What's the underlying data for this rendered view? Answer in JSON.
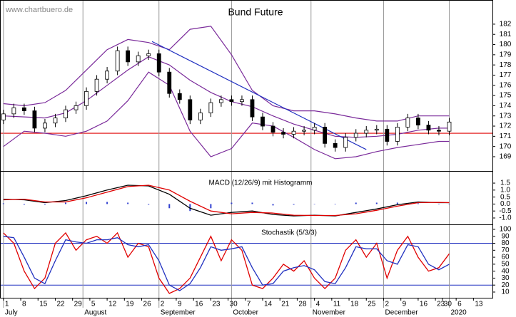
{
  "chart_data": [
    {
      "type": "candlestick",
      "title": "Bund Future",
      "source": "www.chartbuero.de",
      "xlim": [
        -1,
        141.5
      ],
      "ylim": [
        167.6,
        184.3
      ],
      "yticks": [
        169,
        170,
        171,
        172,
        173,
        174,
        175,
        176,
        177,
        178,
        179,
        180,
        181,
        182
      ],
      "x": [
        0,
        3,
        6,
        9,
        12,
        15,
        18,
        21,
        24,
        27,
        30,
        33,
        36,
        39,
        42,
        45,
        48,
        51,
        54,
        57,
        60,
        63,
        66,
        69,
        72,
        75,
        78,
        81,
        84,
        87,
        90,
        93,
        96,
        99,
        102,
        105,
        108,
        111,
        114,
        117,
        120,
        123,
        126,
        129
      ],
      "open": [
        172.6,
        173.2,
        173.8,
        173.5,
        171.8,
        172.3,
        172.8,
        173.6,
        174.0,
        175.4,
        176.6,
        177.4,
        179.4,
        178.3,
        178.9,
        179.1,
        177.3,
        175.2,
        174.6,
        172.6,
        173.3,
        174.3,
        174.6,
        174.4,
        174.6,
        172.9,
        172.0,
        171.4,
        171.2,
        171.5,
        171.6,
        171.9,
        170.3,
        169.9,
        170.9,
        171.3,
        171.6,
        171.7,
        170.5,
        171.9,
        172.8,
        172.1,
        171.6,
        171.5
      ],
      "high": [
        173.6,
        174.2,
        174.2,
        173.9,
        172.7,
        173.2,
        174.0,
        174.4,
        175.8,
        177.0,
        177.8,
        179.8,
        179.8,
        179.3,
        179.5,
        179.5,
        177.7,
        175.6,
        175.0,
        173.7,
        174.7,
        175.0,
        175.0,
        175.0,
        175.0,
        173.3,
        172.4,
        171.8,
        171.9,
        172.0,
        172.3,
        172.3,
        170.7,
        171.3,
        171.7,
        172.0,
        172.1,
        172.1,
        172.3,
        173.2,
        173.2,
        172.5,
        172.0,
        172.8
      ],
      "low": [
        172.2,
        172.8,
        173.1,
        171.4,
        171.4,
        171.9,
        172.4,
        173.2,
        173.6,
        175.0,
        176.2,
        177.0,
        177.9,
        177.9,
        178.5,
        176.9,
        174.8,
        174.2,
        172.2,
        172.2,
        172.9,
        173.9,
        174.0,
        174.0,
        172.5,
        171.6,
        171.0,
        170.8,
        170.8,
        171.1,
        171.2,
        169.9,
        169.5,
        169.5,
        170.5,
        170.9,
        171.2,
        170.1,
        170.1,
        171.5,
        171.7,
        171.2,
        171.1,
        171.1
      ],
      "close": [
        173.2,
        173.8,
        173.5,
        171.8,
        172.3,
        172.8,
        173.6,
        174.0,
        175.4,
        176.6,
        177.4,
        179.4,
        178.3,
        178.9,
        179.1,
        177.3,
        175.2,
        174.6,
        172.6,
        173.3,
        174.3,
        174.6,
        174.4,
        174.6,
        172.9,
        172.0,
        171.4,
        171.2,
        171.5,
        171.6,
        171.9,
        170.3,
        169.9,
        170.9,
        171.3,
        171.6,
        171.7,
        170.5,
        171.9,
        172.8,
        172.1,
        171.6,
        171.5,
        172.4
      ],
      "up_color": "#ffffff",
      "down_color": "#000000",
      "bands": {
        "x": [
          0,
          6,
          12,
          18,
          24,
          30,
          36,
          42,
          48,
          54,
          60,
          66,
          72,
          78,
          84,
          90,
          96,
          102,
          108,
          114,
          120,
          126,
          129
        ],
        "series": [
          {
            "color": "#7a2a9a",
            "values": [
              174.2,
              174.0,
              174.3,
              175.5,
              177.5,
              179.5,
              180.5,
              180.2,
              179.5,
              181.5,
              181.8,
              179.0,
              175.5,
              174.0,
              173.5,
              173.5,
              173.2,
              172.8,
              172.5,
              172.5,
              173.0,
              173.0,
              173.0
            ]
          },
          {
            "color": "#7a2a9a",
            "values": [
              173.0,
              172.9,
              172.8,
              173.3,
              174.5,
              176.0,
              177.5,
              178.8,
              178.0,
              176.5,
              175.3,
              174.4,
              173.9,
              173.0,
              172.2,
              171.6,
              171.0,
              170.9,
              171.0,
              171.2,
              171.6,
              171.8,
              171.8
            ]
          },
          {
            "color": "#7a2a9a",
            "values": [
              170.0,
              171.5,
              171.3,
              171.0,
              171.5,
              172.5,
              174.5,
              177.3,
              176.0,
              171.5,
              169.0,
              169.8,
              172.3,
              172.0,
              170.9,
              169.7,
              168.8,
              169.0,
              169.5,
              169.9,
              170.2,
              170.5,
              170.5
            ]
          }
        ]
      },
      "level": {
        "value": 171.3,
        "color": "#e00000"
      },
      "trendline": {
        "x": [
          43,
          105
        ],
        "y": [
          180.3,
          169.7
        ],
        "color": "#2030c0"
      }
    },
    {
      "type": "macd",
      "title": "MACD (12/26/9) mit Histogramm",
      "xlim": [
        -1,
        141.5
      ],
      "ylim": [
        -1.46,
        2.32
      ],
      "yticks": [
        {
          "value": -1,
          "label": "-1.0"
        },
        -0.5,
        {
          "value": 0,
          "label": "0.0"
        },
        0.5,
        {
          "value": 1,
          "label": "1.0"
        },
        1.5
      ],
      "x": [
        0,
        6,
        12,
        18,
        24,
        30,
        36,
        42,
        48,
        54,
        60,
        66,
        72,
        78,
        84,
        90,
        96,
        102,
        108,
        114,
        120,
        126,
        129
      ],
      "series": [
        {
          "color": "#000000",
          "values": [
            0.35,
            0.3,
            0.1,
            0.25,
            0.6,
            1.0,
            1.35,
            1.3,
            0.7,
            -0.3,
            -0.8,
            -0.6,
            -0.5,
            -0.75,
            -0.85,
            -0.8,
            -0.85,
            -0.6,
            -0.35,
            -0.05,
            0.15,
            0.1,
            0.1
          ]
        },
        {
          "color": "#e00000",
          "values": [
            0.3,
            0.35,
            0.15,
            0.15,
            0.45,
            0.85,
            1.25,
            1.35,
            1.0,
            0.2,
            -0.5,
            -0.7,
            -0.6,
            -0.65,
            -0.8,
            -0.82,
            -0.82,
            -0.7,
            -0.45,
            -0.15,
            0.1,
            0.12,
            0.1
          ]
        }
      ],
      "histogram": {
        "color": "#3040d0",
        "values": [
          0.05,
          -0.05,
          -0.05,
          0.1,
          0.15,
          0.15,
          0.1,
          -0.05,
          -0.3,
          -0.5,
          -0.3,
          0.1,
          0.1,
          -0.1,
          -0.05,
          0.02,
          -0.03,
          0.1,
          0.1,
          0.1,
          0.05,
          -0.02,
          0
        ]
      }
    },
    {
      "type": "line",
      "title": "Stochastik (5/3/3)",
      "xlim": [
        -1,
        141.5
      ],
      "ylim": [
        1.8,
        106.1
      ],
      "yticks": [
        10,
        20,
        30,
        40,
        50,
        60,
        70,
        80,
        90,
        100
      ],
      "levels": [
        80,
        20
      ],
      "level_color": "#2030c0",
      "x": [
        0,
        3,
        6,
        9,
        12,
        15,
        18,
        21,
        24,
        27,
        30,
        33,
        36,
        39,
        42,
        45,
        48,
        51,
        54,
        57,
        60,
        63,
        66,
        69,
        72,
        75,
        78,
        81,
        84,
        87,
        90,
        93,
        96,
        99,
        102,
        105,
        108,
        111,
        114,
        117,
        120,
        123,
        126,
        129
      ],
      "series": [
        {
          "color": "#e00000",
          "values": [
            95,
            80,
            40,
            15,
            30,
            80,
            95,
            70,
            85,
            90,
            80,
            95,
            60,
            80,
            75,
            30,
            8,
            15,
            30,
            60,
            90,
            55,
            85,
            70,
            20,
            15,
            30,
            50,
            40,
            55,
            30,
            15,
            30,
            70,
            85,
            60,
            80,
            30,
            70,
            90,
            60,
            40,
            45,
            65
          ]
        },
        {
          "color": "#2030c0",
          "values": [
            90,
            88,
            60,
            30,
            22,
            55,
            85,
            82,
            80,
            85,
            85,
            88,
            78,
            75,
            78,
            55,
            20,
            12,
            22,
            45,
            75,
            70,
            72,
            75,
            45,
            20,
            22,
            40,
            45,
            48,
            42,
            25,
            22,
            45,
            75,
            72,
            72,
            55,
            50,
            78,
            75,
            50,
            42,
            50
          ]
        }
      ],
      "xticks": [
        {
          "value": 0,
          "label": "1"
        },
        {
          "value": 5,
          "label": "8"
        },
        {
          "value": 10,
          "label": "15"
        },
        {
          "value": 15,
          "label": "22"
        },
        {
          "value": 20,
          "label": "29"
        },
        {
          "value": 25,
          "label": "5"
        },
        {
          "value": 30,
          "label": "12"
        },
        {
          "value": 35,
          "label": "19"
        },
        {
          "value": 40,
          "label": "26"
        },
        {
          "value": 45,
          "label": "2"
        },
        {
          "value": 50,
          "label": "9"
        },
        {
          "value": 55,
          "label": "16"
        },
        {
          "value": 60,
          "label": "23"
        },
        {
          "value": 65,
          "label": "30"
        },
        {
          "value": 70,
          "label": "7"
        },
        {
          "value": 75,
          "label": "14"
        },
        {
          "value": 80,
          "label": "21"
        },
        {
          "value": 85,
          "label": "28"
        },
        {
          "value": 90,
          "label": "4"
        },
        {
          "value": 95,
          "label": "11"
        },
        {
          "value": 100,
          "label": "18"
        },
        {
          "value": 105,
          "label": "25"
        },
        {
          "value": 110,
          "label": "2"
        },
        {
          "value": 115,
          "label": "9"
        },
        {
          "value": 120,
          "label": "16"
        },
        {
          "value": 125,
          "label": "23"
        },
        {
          "value": 127,
          "label": "30"
        },
        {
          "value": 131,
          "label": "6"
        },
        {
          "value": 136,
          "label": "13"
        }
      ],
      "months": [
        {
          "value": 0,
          "label": "July"
        },
        {
          "value": 23,
          "label": "August"
        },
        {
          "value": 45,
          "label": "September"
        },
        {
          "value": 66,
          "label": "October"
        },
        {
          "value": 89,
          "label": "November"
        },
        {
          "value": 110,
          "label": "December"
        },
        {
          "value": 129,
          "label": "2020"
        }
      ]
    }
  ]
}
